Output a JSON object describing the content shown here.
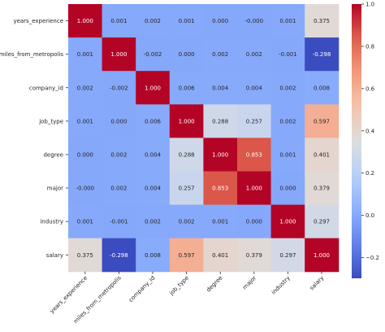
{
  "chart_data": {
    "type": "heatmap",
    "title": "",
    "xlabel": "",
    "ylabel": "",
    "variables": [
      "years_experience",
      "miles_from_metropolis",
      "company_id",
      "job_type",
      "degree",
      "major",
      "industry",
      "salary"
    ],
    "values": [
      [
        1.0,
        0.001,
        0.002,
        0.001,
        0.0,
        -0.0,
        0.001,
        0.375
      ],
      [
        0.001,
        1.0,
        -0.002,
        0.0,
        0.002,
        0.002,
        -0.001,
        -0.298
      ],
      [
        0.002,
        -0.002,
        1.0,
        0.006,
        0.004,
        0.004,
        0.002,
        0.008
      ],
      [
        0.001,
        0.0,
        0.006,
        1.0,
        0.288,
        0.257,
        0.002,
        0.597
      ],
      [
        0.0,
        0.002,
        0.004,
        0.288,
        1.0,
        0.853,
        0.001,
        0.401
      ],
      [
        -0.0,
        0.002,
        0.004,
        0.257,
        0.853,
        1.0,
        0.0,
        0.379
      ],
      [
        0.001,
        -0.001,
        0.002,
        0.002,
        0.001,
        0.0,
        1.0,
        0.297
      ],
      [
        0.375,
        -0.298,
        0.008,
        0.597,
        0.401,
        0.379,
        0.297,
        1.0
      ]
    ],
    "cell_labels": [
      [
        "1.000",
        "0.001",
        "0.002",
        "0.001",
        "0.000",
        "-0.000",
        "0.001",
        "0.375"
      ],
      [
        "0.001",
        "1.000",
        "-0.002",
        "0.000",
        "0.002",
        "0.002",
        "-0.001",
        "-0.298"
      ],
      [
        "0.002",
        "-0.002",
        "1.000",
        "0.006",
        "0.004",
        "0.004",
        "0.002",
        "0.008"
      ],
      [
        "0.001",
        "0.000",
        "0.006",
        "1.000",
        "0.288",
        "0.257",
        "0.002",
        "0.597"
      ],
      [
        "0.000",
        "0.002",
        "0.004",
        "0.288",
        "1.000",
        "0.853",
        "0.001",
        "0.401"
      ],
      [
        "-0.000",
        "0.002",
        "0.004",
        "0.257",
        "0.853",
        "1.000",
        "0.000",
        "0.379"
      ],
      [
        "0.001",
        "-0.001",
        "0.002",
        "0.002",
        "0.001",
        "0.000",
        "1.000",
        "0.297"
      ],
      [
        "0.375",
        "-0.298",
        "0.008",
        "0.597",
        "0.401",
        "0.379",
        "0.297",
        "1.000"
      ]
    ],
    "colorbar": {
      "range": [
        -0.298,
        1.0
      ],
      "ticks": [
        -0.2,
        0.0,
        0.2,
        0.4,
        0.6,
        0.8,
        1.0
      ],
      "tick_labels": [
        "−0.2",
        "0.0",
        "0.2",
        "0.4",
        "0.6",
        "0.8",
        "1.0"
      ],
      "colormap": "coolwarm",
      "low_color": "#3b4cc0",
      "mid_color": "#dddddd",
      "high_color": "#b40426"
    }
  }
}
